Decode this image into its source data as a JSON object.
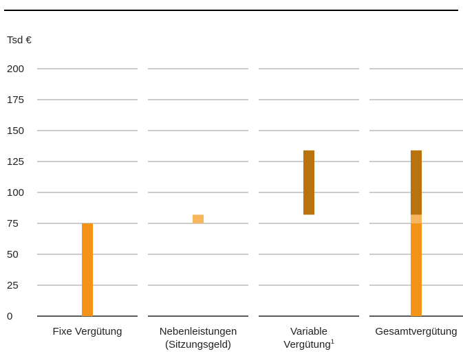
{
  "chart_data": {
    "type": "bar",
    "title": "",
    "ylabel": "Tsd €",
    "ylim": [
      0,
      200
    ],
    "yticks": [
      "0",
      "25",
      "50",
      "75",
      "100",
      "125",
      "150",
      "175",
      "200"
    ],
    "categories": [
      {
        "lines": [
          "Fixe Vergütung"
        ],
        "sup": ""
      },
      {
        "lines": [
          "Nebenleistungen",
          "(Sitzungsgeld)"
        ],
        "sup": ""
      },
      {
        "lines": [
          "Variable",
          "Vergütung"
        ],
        "sup": "1"
      },
      {
        "lines": [
          "Gesamtvergütung"
        ],
        "sup": ""
      }
    ],
    "bars": [
      {
        "category": 0,
        "from": 0,
        "to": 75,
        "color": "#f39317"
      },
      {
        "category": 1,
        "from": 75,
        "to": 82,
        "color": "#f7b55e"
      },
      {
        "category": 2,
        "from": 82,
        "to": 134,
        "color": "#b8720e"
      },
      {
        "category": 3,
        "from": 0,
        "to": 75,
        "color": "#f39317"
      },
      {
        "category": 3,
        "from": 75,
        "to": 82,
        "color": "#f7b55e"
      },
      {
        "category": 3,
        "from": 82,
        "to": 134,
        "color": "#b8720e"
      }
    ],
    "grid": true,
    "colors": {
      "gridline": "#9a9a9a",
      "baseline": "#222222",
      "header_rule": "#000000"
    }
  }
}
